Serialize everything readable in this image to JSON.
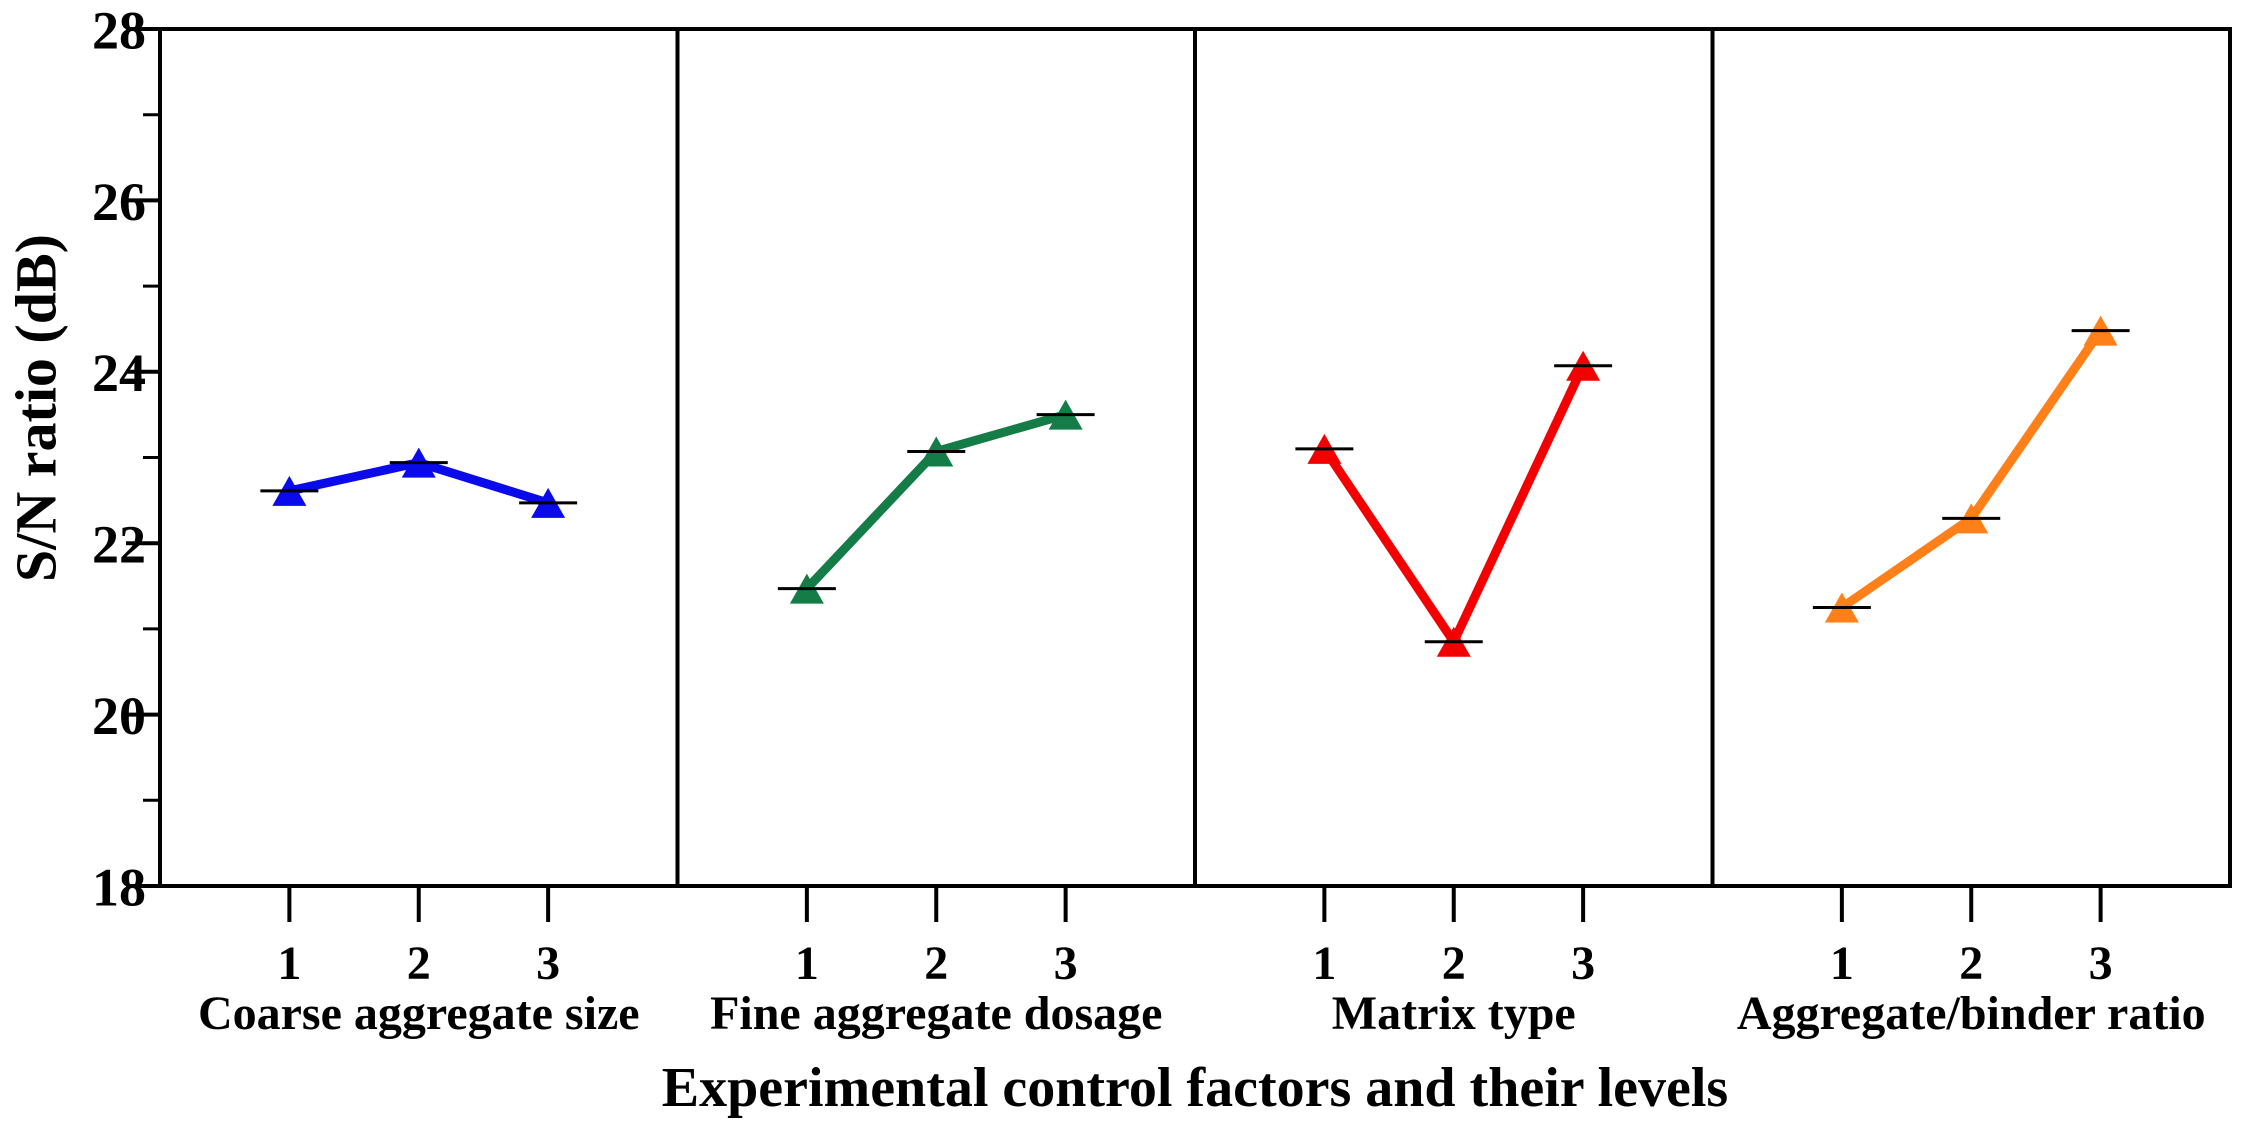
{
  "figure": {
    "ylabel": "S/N ratio (dB)",
    "xlabel": "Experimental control factors and their levels"
  },
  "chart_data": {
    "type": "line",
    "title": "",
    "xlabel": "Experimental control factors and their levels",
    "ylabel": "S/N ratio (dB)",
    "ylim": [
      18,
      28
    ],
    "yticks_major": [
      18,
      20,
      22,
      24,
      26,
      28
    ],
    "yticks_minor": [
      19,
      21,
      23,
      25,
      27
    ],
    "levels": [
      "1",
      "2",
      "3"
    ],
    "marker": "triangle-up",
    "error_bars": true,
    "grid": false,
    "legend": "none",
    "panels": [
      {
        "factor": "Coarse aggregate size",
        "color": "#0a0aeb",
        "values": [
          22.61,
          22.94,
          22.47
        ]
      },
      {
        "factor": "Fine aggregate dosage",
        "color": "#147c46",
        "values": [
          21.47,
          23.07,
          23.5
        ]
      },
      {
        "factor": "Matrix type",
        "color": "#f40000",
        "values": [
          23.1,
          20.85,
          24.07
        ]
      },
      {
        "factor": "Aggregate/binder ratio",
        "color": "#ff7f19",
        "values": [
          21.25,
          22.29,
          24.48
        ]
      }
    ]
  }
}
